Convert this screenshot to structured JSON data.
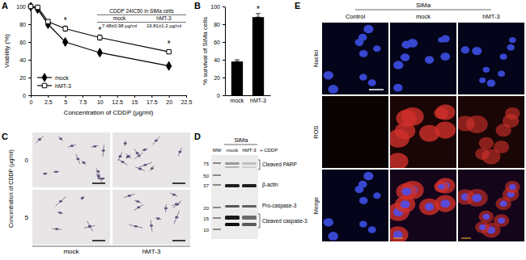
{
  "chart_data": [
    {
      "type": "line",
      "panel_label": "A",
      "x": [
        0,
        1,
        2.5,
        5,
        10,
        20
      ],
      "xlim": [
        0,
        22.5
      ],
      "xticks": [
        0,
        2.5,
        5,
        7.5,
        10,
        12.5,
        15,
        17.5,
        20,
        22.5
      ],
      "ylim": [
        0,
        100
      ],
      "yticks": [
        0,
        20,
        40,
        60,
        80,
        100
      ],
      "x_label": "Concentration of CDDP (µg/ml)",
      "y_label": "Viability (%)",
      "legend": "bottom-left",
      "series": [
        {
          "name": "mock",
          "color": "#000000",
          "marker": "diamond",
          "values": [
            100,
            97,
            80,
            60,
            48,
            33
          ],
          "errors": [
            0,
            1,
            2,
            1,
            1,
            1
          ]
        },
        {
          "name": "hMT-3",
          "color": "#000000",
          "marker": "open-square",
          "values": [
            100,
            99,
            83,
            75,
            65,
            49
          ],
          "errors": [
            0,
            5,
            2,
            3,
            3,
            2
          ]
        }
      ],
      "annotations": [
        {
          "text": "*",
          "x": 5,
          "y": 81
        },
        {
          "text": "*",
          "x": 10,
          "y": 70
        },
        {
          "text": "*",
          "x": 20,
          "y": 55
        }
      ],
      "table": {
        "title": "CDDP 24IC50 in SiMa cells",
        "columns": [
          "mock",
          "hMT-3"
        ],
        "values": [
          "7.48±0.98 µg/ml",
          "19.81±1.2 µg/ml"
        ]
      }
    },
    {
      "type": "bar",
      "panel_label": "B",
      "categories": [
        "mock",
        "hMT-3"
      ],
      "values": [
        38,
        88
      ],
      "errors": [
        2,
        4
      ],
      "color": "#000000",
      "ylim": [
        0,
        100
      ],
      "yticks": [
        0,
        20,
        40,
        60,
        80,
        100
      ],
      "y_label": "% survival of SiMa cells",
      "annotations": [
        {
          "text": "*",
          "x": "hMT-3",
          "y": 94
        }
      ]
    }
  ],
  "panels": {
    "C": {
      "label": "C",
      "columns": [
        "mock",
        "hMT-3"
      ],
      "rows": [
        "0",
        "5"
      ],
      "row_title": "Concentration of CDDP (µg/ml)"
    },
    "D": {
      "label": "D",
      "header": "SiMa",
      "columns": [
        "MW",
        "mock",
        "hMT-3"
      ],
      "treatment": "+ CDDP",
      "mw_markers": [
        75,
        50,
        37,
        20,
        15,
        10
      ],
      "bands": [
        "Cleaved PARP",
        "β-actin",
        "Pro-caspase-3",
        "Cleaved caspase-3"
      ]
    },
    "E": {
      "label": "E",
      "header": "SiMa",
      "columns": [
        "Control",
        "mock",
        "hMT-3"
      ],
      "rows": [
        "Nuclei",
        "ROS",
        "Merge"
      ]
    }
  }
}
